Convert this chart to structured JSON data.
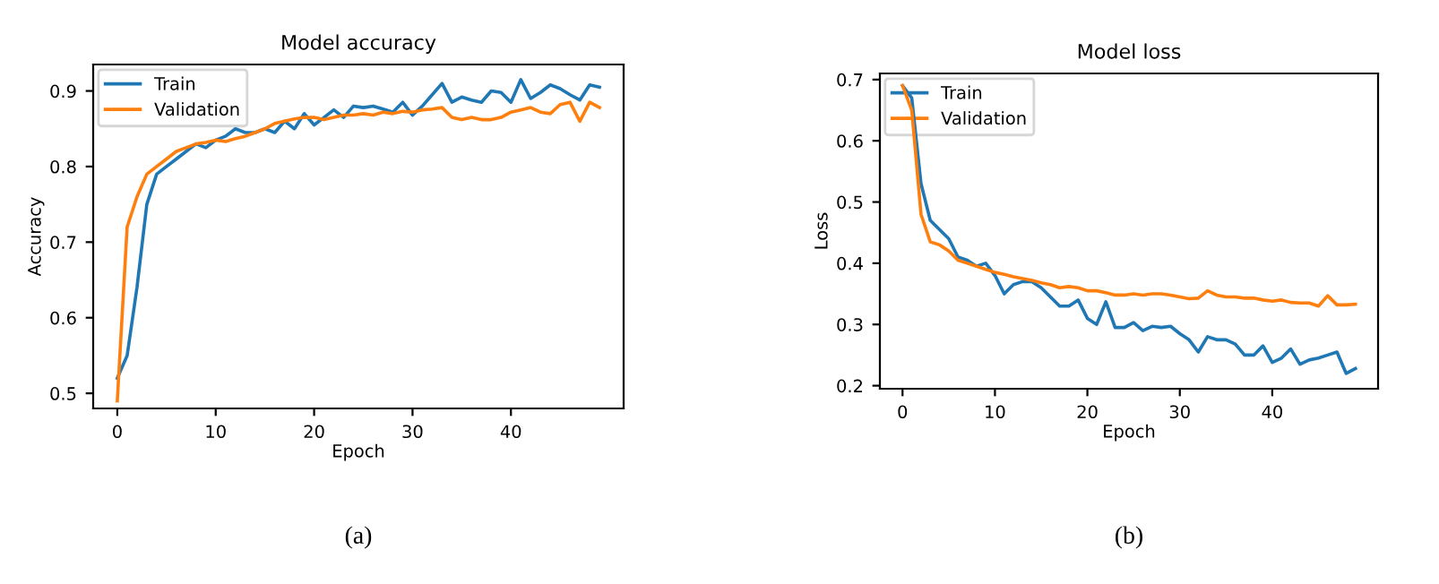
{
  "chart_data": [
    {
      "type": "line",
      "title": "Model accuracy",
      "xlabel": "Epoch",
      "ylabel": "Accuracy",
      "legend": "top left",
      "grid": false,
      "xlim": [
        -2.45,
        51.45
      ],
      "ylim": [
        0.48,
        0.935
      ],
      "xticks": [
        0,
        10,
        20,
        30,
        40
      ],
      "yticks": [
        0.5,
        0.6,
        0.7,
        0.8,
        0.9
      ],
      "x": [
        0,
        1,
        2,
        3,
        4,
        5,
        6,
        7,
        8,
        9,
        10,
        11,
        12,
        13,
        14,
        15,
        16,
        17,
        18,
        19,
        20,
        21,
        22,
        23,
        24,
        25,
        26,
        27,
        28,
        29,
        30,
        31,
        32,
        33,
        34,
        35,
        36,
        37,
        38,
        39,
        40,
        41,
        42,
        43,
        44,
        45,
        46,
        47,
        48,
        49
      ],
      "annotations": [
        "(a)"
      ],
      "series": [
        {
          "name": "Train",
          "color": "#1f77b4",
          "values": [
            0.52,
            0.55,
            0.64,
            0.75,
            0.79,
            0.8,
            0.81,
            0.82,
            0.83,
            0.825,
            0.835,
            0.84,
            0.85,
            0.845,
            0.845,
            0.85,
            0.845,
            0.86,
            0.85,
            0.87,
            0.855,
            0.865,
            0.875,
            0.865,
            0.88,
            0.878,
            0.88,
            0.876,
            0.872,
            0.885,
            0.868,
            0.88,
            0.895,
            0.91,
            0.885,
            0.892,
            0.888,
            0.885,
            0.9,
            0.898,
            0.885,
            0.915,
            0.89,
            0.898,
            0.908,
            0.903,
            0.895,
            0.888,
            0.908,
            0.905
          ]
        },
        {
          "name": "Validation",
          "color": "#ff7f0e",
          "values": [
            0.49,
            0.72,
            0.76,
            0.79,
            0.8,
            0.81,
            0.82,
            0.825,
            0.83,
            0.832,
            0.835,
            0.833,
            0.837,
            0.84,
            0.845,
            0.85,
            0.857,
            0.86,
            0.863,
            0.865,
            0.865,
            0.862,
            0.865,
            0.868,
            0.868,
            0.87,
            0.868,
            0.872,
            0.87,
            0.873,
            0.872,
            0.875,
            0.876,
            0.878,
            0.865,
            0.862,
            0.865,
            0.862,
            0.862,
            0.865,
            0.872,
            0.875,
            0.878,
            0.872,
            0.87,
            0.882,
            0.885,
            0.86,
            0.885,
            0.878
          ]
        }
      ]
    },
    {
      "type": "line",
      "title": "Model loss",
      "xlabel": "Epoch",
      "ylabel": "Loss",
      "legend": "top left",
      "grid": false,
      "xlim": [
        -2.45,
        51.45
      ],
      "ylim": [
        0.195,
        0.71
      ],
      "xticks": [
        0,
        10,
        20,
        30,
        40
      ],
      "yticks": [
        0.2,
        0.3,
        0.4,
        0.5,
        0.6,
        0.7
      ],
      "x": [
        0,
        1,
        2,
        3,
        4,
        5,
        6,
        7,
        8,
        9,
        10,
        11,
        12,
        13,
        14,
        15,
        16,
        17,
        18,
        19,
        20,
        21,
        22,
        23,
        24,
        25,
        26,
        27,
        28,
        29,
        30,
        31,
        32,
        33,
        34,
        35,
        36,
        37,
        38,
        39,
        40,
        41,
        42,
        43,
        44,
        45,
        46,
        47,
        48,
        49
      ],
      "annotations": [
        "(b)"
      ],
      "series": [
        {
          "name": "Train",
          "color": "#1f77b4",
          "values": [
            0.69,
            0.67,
            0.53,
            0.47,
            0.455,
            0.44,
            0.41,
            0.405,
            0.395,
            0.4,
            0.38,
            0.35,
            0.365,
            0.37,
            0.37,
            0.36,
            0.345,
            0.33,
            0.33,
            0.34,
            0.31,
            0.3,
            0.337,
            0.295,
            0.295,
            0.303,
            0.29,
            0.297,
            0.295,
            0.297,
            0.285,
            0.275,
            0.255,
            0.28,
            0.275,
            0.275,
            0.268,
            0.25,
            0.25,
            0.265,
            0.238,
            0.245,
            0.26,
            0.235,
            0.242,
            0.245,
            0.25,
            0.255,
            0.22,
            0.228
          ]
        },
        {
          "name": "Validation",
          "color": "#ff7f0e",
          "values": [
            0.69,
            0.65,
            0.48,
            0.435,
            0.43,
            0.42,
            0.405,
            0.4,
            0.395,
            0.39,
            0.385,
            0.382,
            0.378,
            0.375,
            0.372,
            0.368,
            0.365,
            0.36,
            0.362,
            0.36,
            0.355,
            0.355,
            0.352,
            0.348,
            0.348,
            0.35,
            0.348,
            0.35,
            0.35,
            0.348,
            0.345,
            0.342,
            0.343,
            0.355,
            0.348,
            0.345,
            0.345,
            0.343,
            0.343,
            0.34,
            0.338,
            0.34,
            0.336,
            0.335,
            0.335,
            0.33,
            0.347,
            0.332,
            0.332,
            0.333
          ]
        }
      ]
    }
  ]
}
